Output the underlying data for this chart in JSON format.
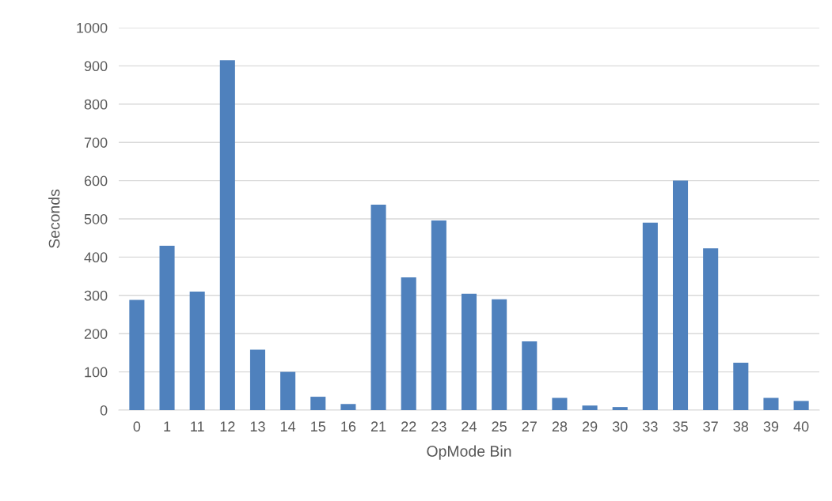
{
  "chart_data": {
    "type": "bar",
    "xlabel": "OpMode Bin",
    "ylabel": "Seconds",
    "categories": [
      "0",
      "1",
      "11",
      "12",
      "13",
      "14",
      "15",
      "16",
      "21",
      "22",
      "23",
      "24",
      "25",
      "27",
      "28",
      "29",
      "30",
      "33",
      "35",
      "37",
      "38",
      "39",
      "40"
    ],
    "values": [
      288,
      430,
      310,
      915,
      158,
      100,
      35,
      16,
      537,
      347,
      496,
      304,
      290,
      180,
      32,
      12,
      8,
      490,
      600,
      423,
      124,
      32,
      24
    ],
    "color": "#4f81bd",
    "ylim": [
      0,
      1000
    ],
    "yticks": [
      0,
      100,
      200,
      300,
      400,
      500,
      600,
      700,
      800,
      900,
      1000
    ],
    "grid": "y",
    "legend": false
  }
}
